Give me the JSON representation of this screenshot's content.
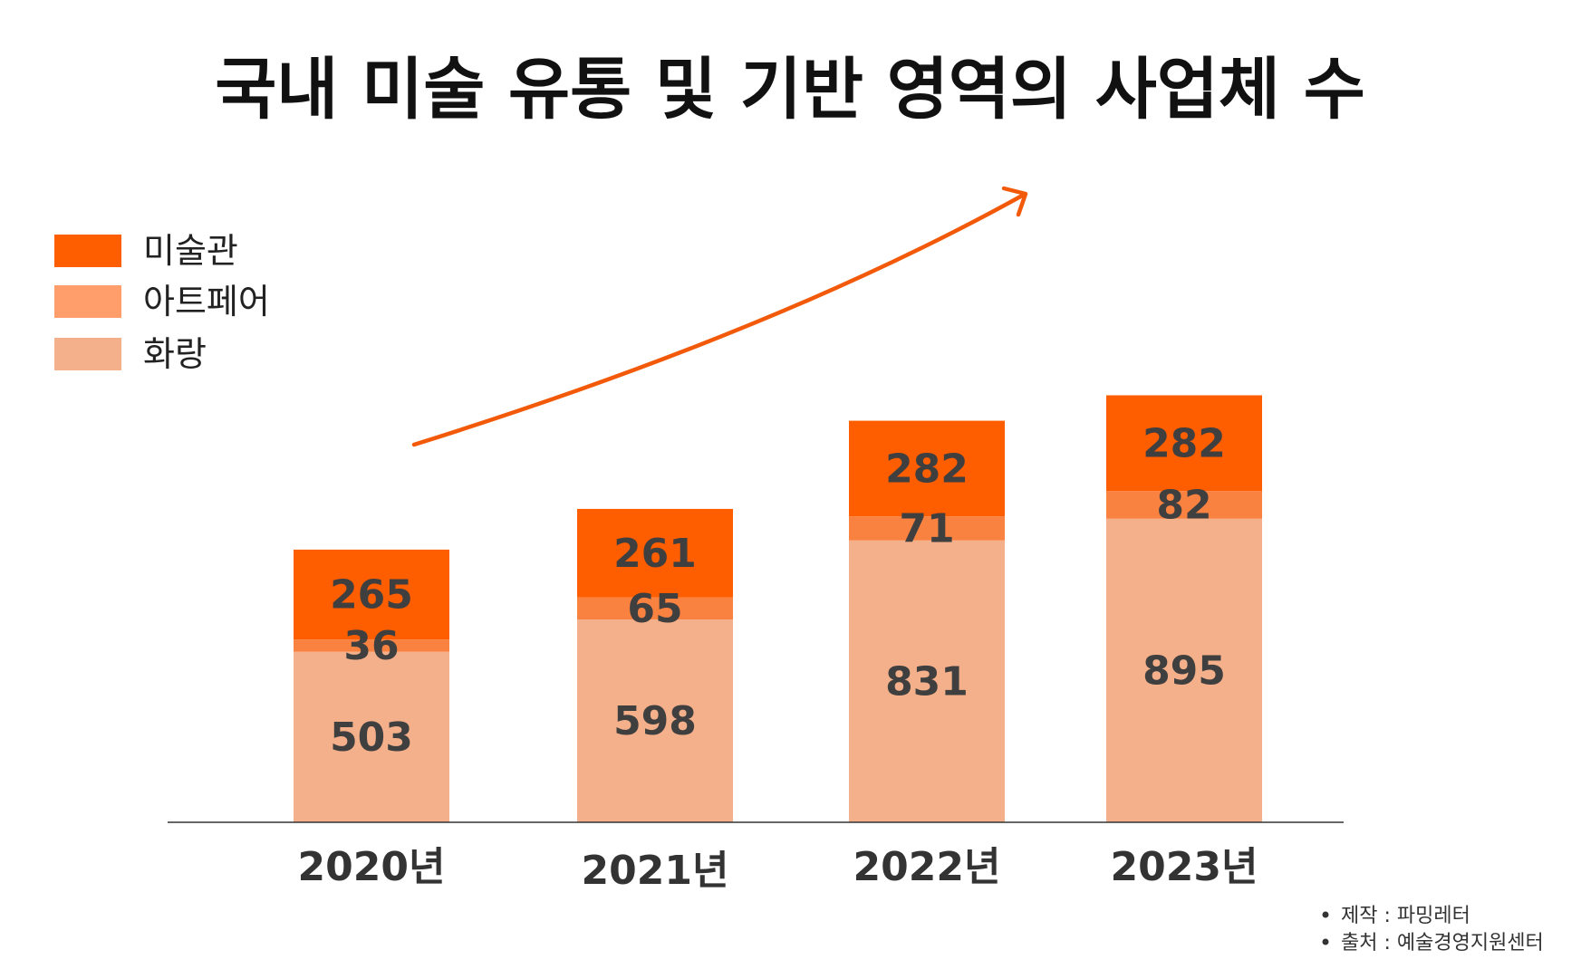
{
  "chart_data": {
    "type": "bar",
    "stacked": true,
    "title": "국내 미술 유통 및 기반 영역의 사업체 수",
    "categories": [
      "2020년",
      "2021년",
      "2022년",
      "2023년"
    ],
    "series": [
      {
        "name": "화랑",
        "color": "#f4b08a",
        "values": [
          503,
          598,
          831,
          895
        ]
      },
      {
        "name": "아트페어",
        "color": "#fa8241",
        "values": [
          36,
          65,
          71,
          82
        ]
      },
      {
        "name": "미술관",
        "color": "#ff5e00",
        "values": [
          265,
          261,
          282,
          282
        ]
      }
    ],
    "legend_order": [
      "미술관",
      "아트페어",
      "화랑"
    ],
    "legend_colors": [
      "#ff5e00",
      "#ff9e6a",
      "#f4b08a"
    ],
    "legend_position": "top-left",
    "trend_arrow": true,
    "trend_color": "#f25a0a",
    "grid": false
  },
  "notes": [
    "제작 : 파밍레터",
    "출처 : 예술경영지원센터"
  ]
}
